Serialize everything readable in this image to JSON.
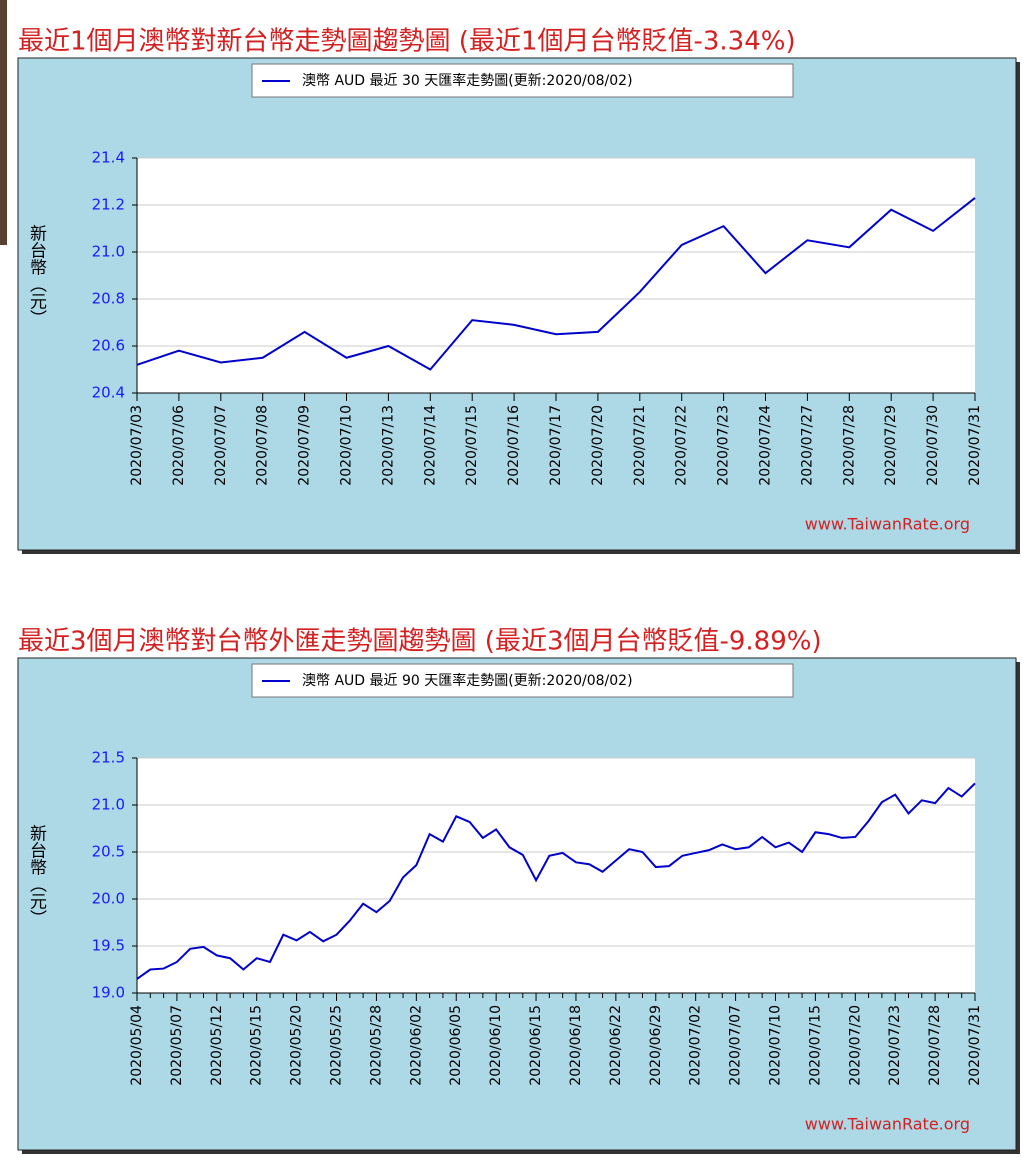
{
  "chart_data": [
    {
      "type": "line",
      "title": "最近1個月澳幣對新台幣走勢圖趨勢圖 (最近1個月台幣貶值-3.34%)",
      "ylabel": "新台幣（元）",
      "annotation": "www.TaiwanRate.org",
      "categories": [
        "2020/07/03",
        "2020/07/06",
        "2020/07/07",
        "2020/07/08",
        "2020/07/09",
        "2020/07/10",
        "2020/07/13",
        "2020/07/14",
        "2020/07/15",
        "2020/07/16",
        "2020/07/17",
        "2020/07/20",
        "2020/07/21",
        "2020/07/22",
        "2020/07/23",
        "2020/07/24",
        "2020/07/27",
        "2020/07/28",
        "2020/07/29",
        "2020/07/30",
        "2020/07/31"
      ],
      "series": [
        {
          "name": "澳幣 AUD 最近 30 天匯率走勢圖(更新:2020/08/02)",
          "color": "#0000cc",
          "values": [
            20.52,
            20.58,
            20.53,
            20.55,
            20.66,
            20.55,
            20.6,
            20.5,
            20.71,
            20.69,
            20.65,
            20.66,
            20.83,
            21.03,
            21.11,
            20.91,
            21.05,
            21.02,
            21.18,
            21.09,
            21.23
          ]
        }
      ],
      "ylim": [
        20.4,
        21.4
      ],
      "yticks": [
        20.4,
        20.6,
        20.8,
        {
          "value": 21,
          "label": "21.0"
        },
        21.2,
        21.4
      ],
      "grid": true
    },
    {
      "type": "line",
      "title": "最近3個月澳幣對台幣外匯走勢圖趨勢圖 (最近3個月台幣貶值-9.89%)",
      "ylabel": "新台幣（元）",
      "annotation": "www.TaiwanRate.org",
      "categories": [
        "2020/05/04",
        null,
        null,
        "2020/05/07",
        null,
        null,
        "2020/05/12",
        null,
        null,
        "2020/05/15",
        null,
        null,
        "2020/05/20",
        null,
        null,
        "2020/05/25",
        null,
        null,
        "2020/05/28",
        null,
        null,
        "2020/06/02",
        null,
        null,
        "2020/06/05",
        null,
        null,
        "2020/06/10",
        null,
        null,
        "2020/06/15",
        null,
        null,
        "2020/06/18",
        null,
        null,
        "2020/06/22",
        null,
        null,
        "2020/06/29",
        null,
        null,
        "2020/07/02",
        null,
        null,
        "2020/07/07",
        null,
        null,
        "2020/07/10",
        null,
        null,
        "2020/07/15",
        null,
        null,
        "2020/07/20",
        null,
        null,
        "2020/07/23",
        null,
        null,
        "2020/07/28",
        null,
        null,
        "2020/07/31"
      ],
      "series": [
        {
          "name": "澳幣 AUD 最近 90 天匯率走勢圖(更新:2020/08/02)",
          "color": "#0000cc",
          "values": [
            19.15,
            19.25,
            19.26,
            19.33,
            19.47,
            19.49,
            19.4,
            19.37,
            19.25,
            19.37,
            19.33,
            19.62,
            19.56,
            19.65,
            19.55,
            19.62,
            19.77,
            19.95,
            19.86,
            19.98,
            20.23,
            20.36,
            20.69,
            20.61,
            20.88,
            20.82,
            20.65,
            20.74,
            20.55,
            20.47,
            20.2,
            20.46,
            20.49,
            20.39,
            20.37,
            20.29,
            20.41,
            20.53,
            20.5,
            20.34,
            20.35,
            20.46,
            20.49,
            20.52,
            20.58,
            20.53,
            20.55,
            20.66,
            20.55,
            20.6,
            20.5,
            20.71,
            20.69,
            20.65,
            20.66,
            20.83,
            21.03,
            21.11,
            20.91,
            21.05,
            21.02,
            21.18,
            21.09,
            21.23
          ]
        }
      ],
      "ylim": [
        19,
        21.5
      ],
      "yticks": [
        {
          "value": 19,
          "label": "19.0"
        },
        19.5,
        {
          "value": 20,
          "label": "20.0"
        },
        20.5,
        {
          "value": 21,
          "label": "21.0"
        },
        21.5
      ],
      "grid": true
    }
  ]
}
